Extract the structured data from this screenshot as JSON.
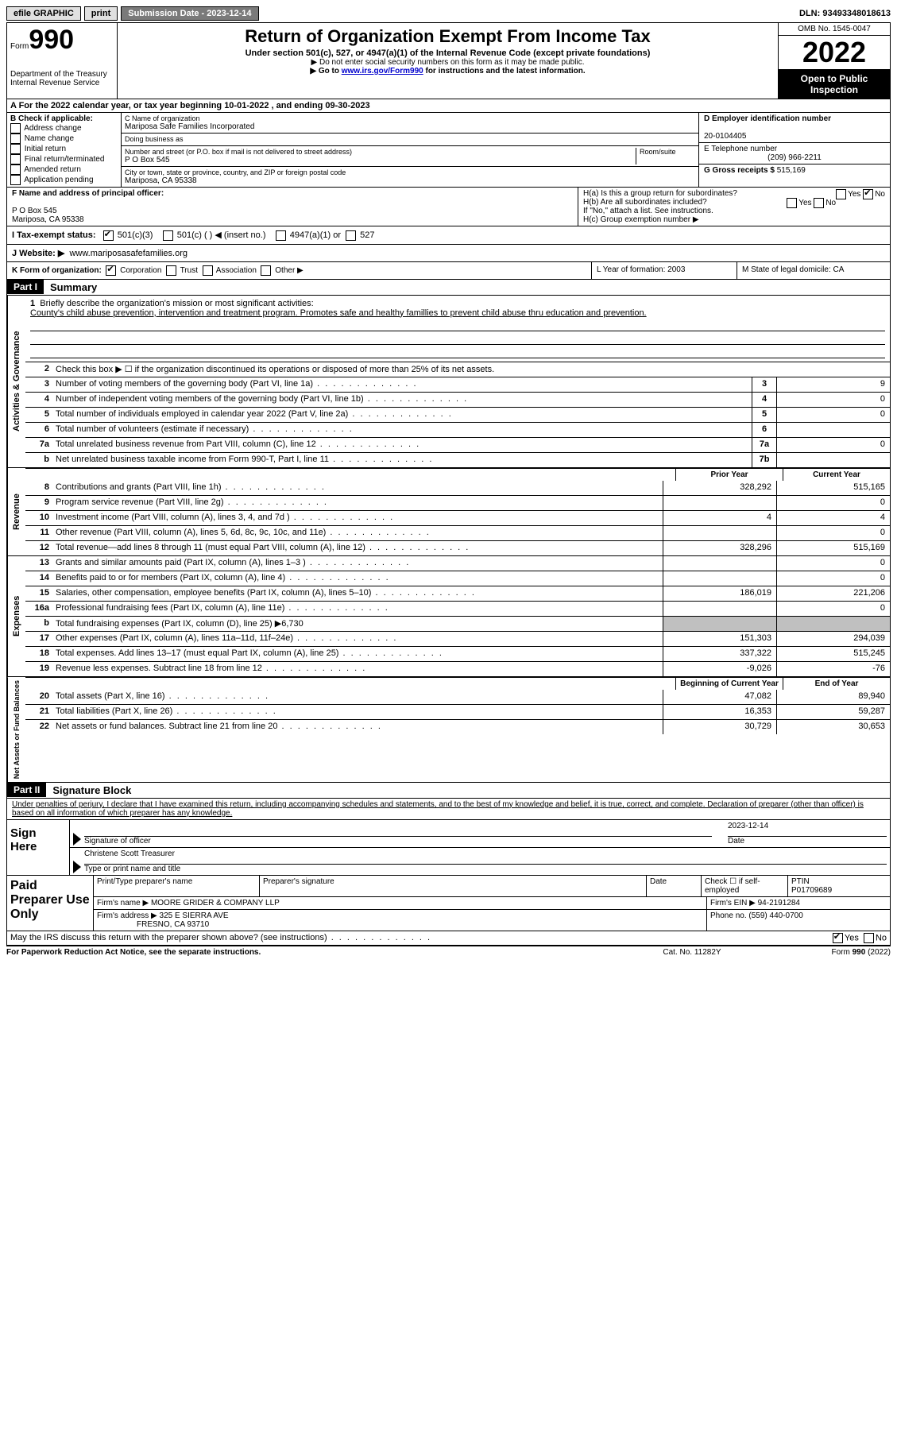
{
  "topbar": {
    "efile": "efile GRAPHIC",
    "print": "print",
    "sub_date_label": "Submission Date - 2023-12-14",
    "dln": "DLN: 93493348018613"
  },
  "header": {
    "form_prefix": "Form",
    "form_number": "990",
    "dept": "Department of the Treasury",
    "irs": "Internal Revenue Service",
    "title": "Return of Organization Exempt From Income Tax",
    "subtitle": "Under section 501(c), 527, or 4947(a)(1) of the Internal Revenue Code (except private foundations)",
    "note1": "▶ Do not enter social security numbers on this form as it may be made public.",
    "note2_pre": "▶ Go to ",
    "note2_link": "www.irs.gov/Form990",
    "note2_post": " for instructions and the latest information.",
    "omb": "OMB No. 1545-0047",
    "year": "2022",
    "open": "Open to Public Inspection"
  },
  "row_a": "A For the 2022 calendar year, or tax year beginning 10-01-2022   , and ending 09-30-2023",
  "section_b": {
    "label": "B Check if applicable:",
    "opts": [
      "Address change",
      "Name change",
      "Initial return",
      "Final return/terminated",
      "Amended return",
      "Application pending"
    ]
  },
  "section_c": {
    "name_label": "C Name of organization",
    "name": "Mariposa Safe Families Incorporated",
    "dba_label": "Doing business as",
    "dba": "",
    "street_label": "Number and street (or P.O. box if mail is not delivered to street address)",
    "room_label": "Room/suite",
    "street": "P O Box 545",
    "city_label": "City or town, state or province, country, and ZIP or foreign postal code",
    "city": "Mariposa, CA  95338"
  },
  "section_d": {
    "ein_label": "D Employer identification number",
    "ein": "20-0104405",
    "phone_label": "E Telephone number",
    "phone": "(209) 966-2211",
    "gross_label": "G Gross receipts $",
    "gross": "515,169"
  },
  "section_f": {
    "label": "F Name and address of principal officer:",
    "addr1": "P O Box 545",
    "addr2": "Mariposa, CA  95338"
  },
  "section_h": {
    "ha": "H(a)  Is this a group return for subordinates?",
    "hb": "H(b)  Are all subordinates included?",
    "hb_note": "If \"No,\" attach a list. See instructions.",
    "hc": "H(c)  Group exemption number ▶"
  },
  "row_i": {
    "label": "I   Tax-exempt status:",
    "opt1": "501(c)(3)",
    "opt2": "501(c) (  ) ◀ (insert no.)",
    "opt3": "4947(a)(1) or",
    "opt4": "527"
  },
  "row_j": {
    "label": "J   Website: ▶",
    "url": "www.mariposasafefamilies.org"
  },
  "row_k": {
    "k": "K Form of organization:",
    "k_opts": [
      "Corporation",
      "Trust",
      "Association",
      "Other ▶"
    ],
    "l": "L Year of formation: 2003",
    "m": "M State of legal domicile: CA"
  },
  "part1": {
    "header": "Part I",
    "title": "Summary"
  },
  "activities": {
    "side": "Activities & Governance",
    "l1_label": "Briefly describe the organization's mission or most significant activities:",
    "l1_text": "County's child abuse prevention, intervention and treatment program. Promotes safe and healthy famillies to prevent child abuse thru education and prevention.",
    "l2": "Check this box ▶ ☐ if the organization discontinued its operations or disposed of more than 25% of its net assets.",
    "l3": "Number of voting members of the governing body (Part VI, line 1a)",
    "l3v": "9",
    "l4": "Number of independent voting members of the governing body (Part VI, line 1b)",
    "l4v": "0",
    "l5": "Total number of individuals employed in calendar year 2022 (Part V, line 2a)",
    "l5v": "0",
    "l6": "Total number of volunteers (estimate if necessary)",
    "l6v": "",
    "l7a": "Total unrelated business revenue from Part VIII, column (C), line 12",
    "l7av": "0",
    "l7b": "Net unrelated business taxable income from Form 990-T, Part I, line 11",
    "l7bv": ""
  },
  "col_headers": {
    "prior": "Prior Year",
    "current": "Current Year"
  },
  "revenue": {
    "side": "Revenue",
    "rows": [
      {
        "n": "8",
        "d": "Contributions and grants (Part VIII, line 1h)",
        "p": "328,292",
        "c": "515,165"
      },
      {
        "n": "9",
        "d": "Program service revenue (Part VIII, line 2g)",
        "p": "",
        "c": "0"
      },
      {
        "n": "10",
        "d": "Investment income (Part VIII, column (A), lines 3, 4, and 7d )",
        "p": "4",
        "c": "4"
      },
      {
        "n": "11",
        "d": "Other revenue (Part VIII, column (A), lines 5, 6d, 8c, 9c, 10c, and 11e)",
        "p": "",
        "c": "0"
      },
      {
        "n": "12",
        "d": "Total revenue—add lines 8 through 11 (must equal Part VIII, column (A), line 12)",
        "p": "328,296",
        "c": "515,169"
      }
    ]
  },
  "expenses": {
    "side": "Expenses",
    "rows": [
      {
        "n": "13",
        "d": "Grants and similar amounts paid (Part IX, column (A), lines 1–3 )",
        "p": "",
        "c": "0"
      },
      {
        "n": "14",
        "d": "Benefits paid to or for members (Part IX, column (A), line 4)",
        "p": "",
        "c": "0"
      },
      {
        "n": "15",
        "d": "Salaries, other compensation, employee benefits (Part IX, column (A), lines 5–10)",
        "p": "186,019",
        "c": "221,206"
      },
      {
        "n": "16a",
        "d": "Professional fundraising fees (Part IX, column (A), line 11e)",
        "p": "",
        "c": "0"
      },
      {
        "n": "b",
        "d": "Total fundraising expenses (Part IX, column (D), line 25) ▶6,730",
        "p": "GREY",
        "c": "GREY"
      },
      {
        "n": "17",
        "d": "Other expenses (Part IX, column (A), lines 11a–11d, 11f–24e)",
        "p": "151,303",
        "c": "294,039"
      },
      {
        "n": "18",
        "d": "Total expenses. Add lines 13–17 (must equal Part IX, column (A), line 25)",
        "p": "337,322",
        "c": "515,245"
      },
      {
        "n": "19",
        "d": "Revenue less expenses. Subtract line 18 from line 12",
        "p": "-9,026",
        "c": "-76"
      }
    ]
  },
  "netassets": {
    "side": "Net Assets or Fund Balances",
    "h1": "Beginning of Current Year",
    "h2": "End of Year",
    "rows": [
      {
        "n": "20",
        "d": "Total assets (Part X, line 16)",
        "p": "47,082",
        "c": "89,940"
      },
      {
        "n": "21",
        "d": "Total liabilities (Part X, line 26)",
        "p": "16,353",
        "c": "59,287"
      },
      {
        "n": "22",
        "d": "Net assets or fund balances. Subtract line 21 from line 20",
        "p": "30,729",
        "c": "30,653"
      }
    ]
  },
  "part2": {
    "header": "Part II",
    "title": "Signature Block",
    "penalty": "Under penalties of perjury, I declare that I have examined this return, including accompanying schedules and statements, and to the best of my knowledge and belief, it is true, correct, and complete. Declaration of preparer (other than officer) is based on all information of which preparer has any knowledge."
  },
  "sign": {
    "label": "Sign Here",
    "sig_label": "Signature of officer",
    "date_label": "Date",
    "date": "2023-12-14",
    "name": "Christene Scott Treasurer",
    "name_label": "Type or print name and title"
  },
  "preparer": {
    "label": "Paid Preparer Use Only",
    "h_name": "Print/Type preparer's name",
    "h_sig": "Preparer's signature",
    "h_date": "Date",
    "h_check": "Check ☐ if self-employed",
    "h_ptin": "PTIN",
    "ptin": "P01709689",
    "firm_label": "Firm's name     ▶",
    "firm": "MOORE GRIDER & COMPANY LLP",
    "ein_label": "Firm's EIN ▶",
    "ein": "94-2191284",
    "addr_label": "Firm's address ▶",
    "addr1": "325 E SIERRA AVE",
    "addr2": "FRESNO, CA  93710",
    "phone_label": "Phone no.",
    "phone": "(559) 440-0700"
  },
  "discuss": "May the IRS discuss this return with the preparer shown above? (see instructions)",
  "footer": {
    "left": "For Paperwork Reduction Act Notice, see the separate instructions.",
    "mid": "Cat. No. 11282Y",
    "right": "Form 990 (2022)"
  }
}
